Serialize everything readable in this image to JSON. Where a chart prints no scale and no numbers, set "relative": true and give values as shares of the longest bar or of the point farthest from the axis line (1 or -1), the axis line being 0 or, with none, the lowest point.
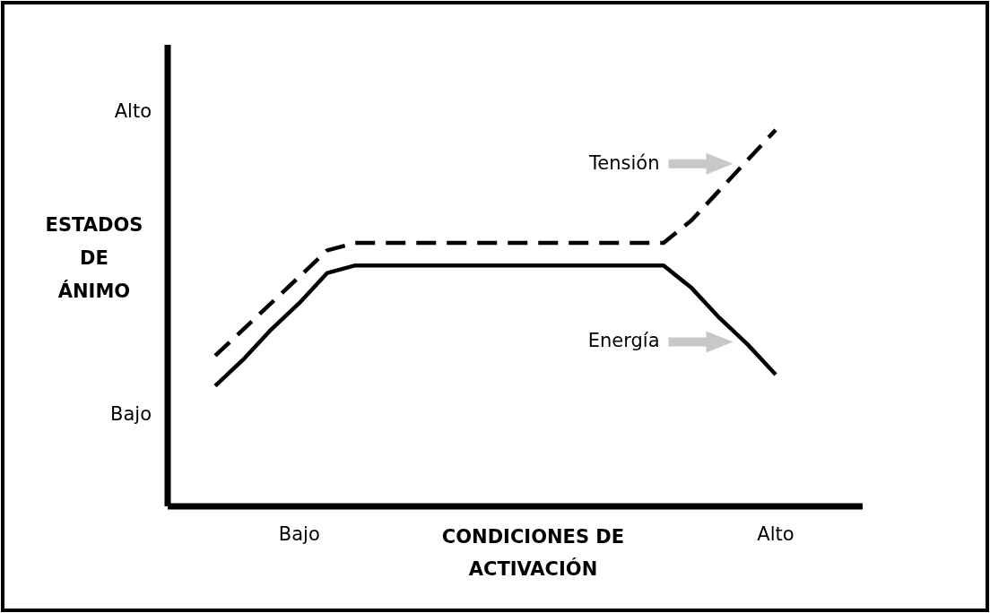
{
  "chart_data": {
    "type": "line",
    "relative": true,
    "xlabel": "CONDICIONES DE ACTIVACIÓN",
    "ylabel": "ESTADOS DE ÁNIMO",
    "categories": [
      null,
      null,
      null,
      "Bajo",
      null,
      null,
      null,
      null,
      null,
      null,
      null,
      null,
      null,
      null,
      null,
      null,
      null,
      null,
      null,
      null,
      "Alto"
    ],
    "annotations": [
      "Bajo",
      "Alto"
    ],
    "legend": false,
    "series": [
      {
        "name": "Tensión",
        "color": "#000000",
        "line_style": "dashed",
        "values": [
          0.4,
          0.47,
          0.54,
          0.61,
          0.68,
          0.7,
          0.7,
          0.7,
          0.7,
          0.7,
          0.7,
          0.7,
          0.7,
          0.7,
          0.7,
          0.7,
          0.7,
          0.76,
          0.84,
          0.92,
          1.0
        ]
      },
      {
        "name": "Energía",
        "color": "#000000",
        "line_style": "solid",
        "values": [
          0.32,
          0.39,
          0.47,
          0.54,
          0.62,
          0.64,
          0.64,
          0.64,
          0.64,
          0.64,
          0.64,
          0.64,
          0.64,
          0.64,
          0.64,
          0.64,
          0.64,
          0.58,
          0.5,
          0.43,
          0.35
        ]
      }
    ]
  }
}
